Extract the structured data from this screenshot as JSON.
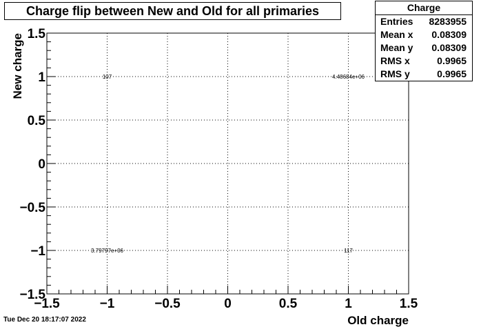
{
  "chart_data": {
    "type": "heatmap",
    "title": "Charge flip between New and Old for all primaries",
    "xlabel": "Old charge",
    "ylabel": "New charge",
    "xlim": [
      -1.5,
      1.5
    ],
    "ylim": [
      -1.5,
      1.5
    ],
    "x_ticks": [
      "−1.5",
      "−1",
      "−0.5",
      "0",
      "0.5",
      "1",
      "1.5"
    ],
    "y_ticks": [
      "−1.5",
      "−1",
      "−0.5",
      "0",
      "0.5",
      "1",
      "1.5"
    ],
    "grid": true,
    "cells": [
      {
        "x": -1,
        "y": 1,
        "label": "107"
      },
      {
        "x": 1,
        "y": 1,
        "label": "4.48684e+06"
      },
      {
        "x": -1,
        "y": -1,
        "label": "3.79797e+06"
      },
      {
        "x": 1,
        "y": -1,
        "label": "117"
      }
    ],
    "stats": {
      "title": "Charge",
      "rows": [
        {
          "name": "Entries",
          "value": "8283955"
        },
        {
          "name": "Mean x",
          "value": "0.08309"
        },
        {
          "name": "Mean y",
          "value": "0.08309"
        },
        {
          "name": "RMS x",
          "value": "0.9965"
        },
        {
          "name": "RMS y",
          "value": "0.9965"
        }
      ]
    }
  },
  "timestamp": "Tue Dec 20 18:17:07 2022"
}
